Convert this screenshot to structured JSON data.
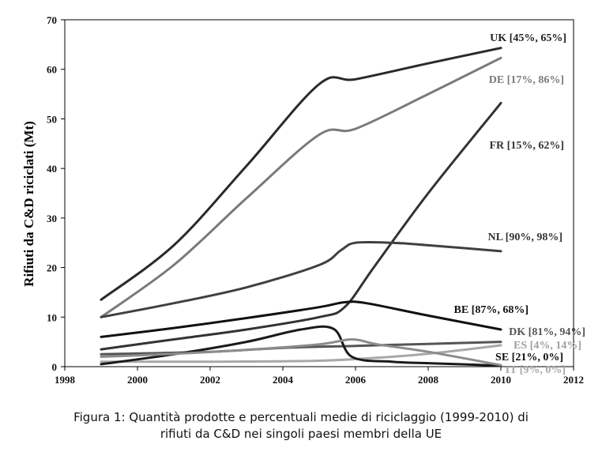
{
  "chart_data": {
    "type": "line",
    "ylabel": "Rifiuti da C&D riciclati (Mt)",
    "xlim": [
      1998,
      2012
    ],
    "ylim": [
      0,
      70
    ],
    "x_ticks": [
      "1998",
      "2000",
      "2002",
      "2004",
      "2006",
      "2008",
      "2010",
      "2012"
    ],
    "y_ticks": [
      "0",
      "10",
      "20",
      "30",
      "40",
      "50",
      "60",
      "70"
    ],
    "grid": false,
    "series": [
      {
        "name": "UK [45%, 65%]",
        "color": "#2a2a2a",
        "points": [
          [
            1999,
            13.5
          ],
          [
            2001,
            24.5
          ],
          [
            2003,
            40.5
          ],
          [
            2005,
            57
          ],
          [
            2006,
            58
          ],
          [
            2008,
            61.2
          ],
          [
            2010,
            64.3
          ]
        ]
      },
      {
        "name": "DE [17%, 86%]",
        "color": "#7a7a7a",
        "points": [
          [
            1999,
            10
          ],
          [
            2001,
            20.5
          ],
          [
            2003,
            34
          ],
          [
            2005,
            46.8
          ],
          [
            2006,
            48
          ],
          [
            2008,
            55
          ],
          [
            2010,
            62.3
          ]
        ]
      },
      {
        "name": "FR [15%, 62%]",
        "color": "#333333",
        "points": [
          [
            1999,
            3.5
          ],
          [
            2001,
            5.5
          ],
          [
            2003,
            7.5
          ],
          [
            2005,
            10
          ],
          [
            2005.7,
            12
          ],
          [
            2006.5,
            20
          ],
          [
            2008,
            35
          ],
          [
            2010,
            53.2
          ]
        ]
      },
      {
        "name": "NL [90%, 98%]",
        "color": "#404040",
        "points": [
          [
            1999,
            10
          ],
          [
            2001,
            12.8
          ],
          [
            2003,
            16
          ],
          [
            2005,
            20.5
          ],
          [
            2005.6,
            23.5
          ],
          [
            2006,
            25
          ],
          [
            2007,
            25
          ],
          [
            2008,
            24.5
          ],
          [
            2010,
            23.3
          ]
        ]
      },
      {
        "name": "BE [87%, 68%]",
        "color": "#111111",
        "points": [
          [
            1999,
            6
          ],
          [
            2001,
            7.8
          ],
          [
            2003,
            9.8
          ],
          [
            2005,
            12
          ],
          [
            2005.7,
            13
          ],
          [
            2006.3,
            12.8
          ],
          [
            2008,
            10.3
          ],
          [
            2010,
            7.5
          ]
        ]
      },
      {
        "name": "DK [81%, 94%]",
        "color": "#555555",
        "points": [
          [
            1999,
            2.5
          ],
          [
            2002,
            3
          ],
          [
            2004,
            3.8
          ],
          [
            2006,
            4.2
          ],
          [
            2008,
            4.6
          ],
          [
            2010,
            5
          ]
        ]
      },
      {
        "name": "ES [4%, 14%]",
        "color": "#a8a8a8",
        "points": [
          [
            1999,
            1
          ],
          [
            2002,
            1
          ],
          [
            2005,
            1.2
          ],
          [
            2007,
            2
          ],
          [
            2008.5,
            3
          ],
          [
            2010,
            4.3
          ]
        ]
      },
      {
        "name": "SE [21%, 0%]",
        "color": "#1a1a1a",
        "points": [
          [
            1999,
            0.5
          ],
          [
            2001,
            2.5
          ],
          [
            2003,
            5
          ],
          [
            2004.5,
            7.5
          ],
          [
            2005.4,
            7.6
          ],
          [
            2005.9,
            2
          ],
          [
            2007,
            1
          ],
          [
            2008,
            0.7
          ],
          [
            2010,
            0.2
          ]
        ]
      },
      {
        "name": "IT [9%, 0%]",
        "color": "#8c8c8c",
        "points": [
          [
            1999,
            2
          ],
          [
            2001,
            2.6
          ],
          [
            2003,
            3.4
          ],
          [
            2005,
            4.5
          ],
          [
            2005.9,
            5.5
          ],
          [
            2006.6,
            4.5
          ],
          [
            2008,
            3
          ],
          [
            2010,
            0.3
          ]
        ]
      }
    ],
    "labels": [
      {
        "text": "UK [45%, 65%]",
        "color": "#222222"
      },
      {
        "text": "DE [17%, 86%]",
        "color": "#7a7a7a"
      },
      {
        "text": "FR [15%, 62%]",
        "color": "#333333"
      },
      {
        "text": "NL [90%, 98%]",
        "color": "#333333"
      },
      {
        "text": "BE [87%, 68%]",
        "color": "#111111"
      },
      {
        "text": "DK [81%, 94%]",
        "color": "#555555"
      },
      {
        "text": "ES [4%, 14%]",
        "color": "#a0a0a0"
      },
      {
        "text": "SE [21%, 0%]",
        "color": "#111111"
      },
      {
        "text": "IT [9%, 0%]",
        "color": "#a8a8a8"
      }
    ]
  },
  "caption": {
    "line1": "Figura 1: Quantità prodotte e percentuali medie di riciclaggio (1999-2010) di",
    "line2": "rifiuti da C&D nei singoli paesi membri della UE"
  }
}
